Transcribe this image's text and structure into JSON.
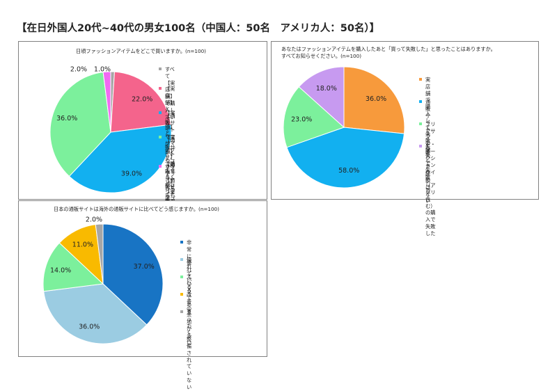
{
  "page": {
    "title": "【在日外国人20代~40代の男女100名（中国人：50名　アメリカ人：50名）】"
  },
  "chart_data": [
    {
      "type": "pie",
      "title": "日頃ファッションアイテムをどこで買いますか。(n=100)",
      "slices": [
        {
          "label": "すべて【実店舗】で購入している",
          "value": 1.0,
          "display": "1.0%",
          "color": "#A6A6A6"
        },
        {
          "label": "【実店舗】と【通販サイトやフリマアプ\nリ】で購入するが、【実店舗】のほう\nが多い",
          "value": 22.0,
          "display": "22.0%",
          "color": "#F4648C"
        },
        {
          "label": "【実店舗】と【通販サイトやフリマアプ\nリ】どちらも同程度購入している",
          "value": 39.0,
          "display": "39.0%",
          "color": "#12B0F0"
        },
        {
          "label": "【実店舗】と【通販サイトやフリマアプ\nリ】で購入するが、【通販サイト・フリマ\nアプリ】のほうが多い",
          "value": 36.0,
          "display": "36.0%",
          "color": "#7CF09C"
        },
        {
          "label": "すべて【通販サイトやフリマアプリ】で\n購入している",
          "value": 2.0,
          "display": "2.0%",
          "color": "#F06AF2"
        }
      ]
    },
    {
      "type": "pie",
      "title": "あなたはファッションアイテムを購入したあと「買って失敗した」と思ったことはありますか。\nすべてお知らせください。(n=100)",
      "slices": [
        {
          "label": "実店舗で購入して失敗した",
          "value": 36.0,
          "display": "36.0%",
          "color": "#F79A3C"
        },
        {
          "label": "通販サイトでの購入で失敗した",
          "value": 58.0,
          "display": "58.0%",
          "color": "#12B0F0"
        },
        {
          "label": "フリマサイト・オークションサイト\n（アプリ含む）の購入で失敗した",
          "value": 23.0,
          "display": "23.0%",
          "color": "#7CF09C"
        },
        {
          "label": "失敗した経験はない",
          "value": 18.0,
          "display": "18.0%",
          "color": "#C79AF0"
        }
      ]
    },
    {
      "type": "pie",
      "title": "日本の通販サイトは海外の通販サイトに比べてどう感じますか。(n=100)",
      "slices": [
        {
          "label": "非常に優れている",
          "value": 37.0,
          "display": "37.0%",
          "color": "#1874C4"
        },
        {
          "label": "優れている",
          "value": 36.0,
          "display": "36.0%",
          "color": "#9BCCE2"
        },
        {
          "label": "ふつうである",
          "value": 14.0,
          "display": "14.0%",
          "color": "#7CF09C"
        },
        {
          "label": "改善の余地が多い",
          "value": 11.0,
          "display": "11.0%",
          "color": "#F9BA00"
        },
        {
          "label": "まったく整備されていない",
          "value": 2.0,
          "display": "2.0%",
          "color": "#A6A6A6"
        }
      ]
    }
  ]
}
